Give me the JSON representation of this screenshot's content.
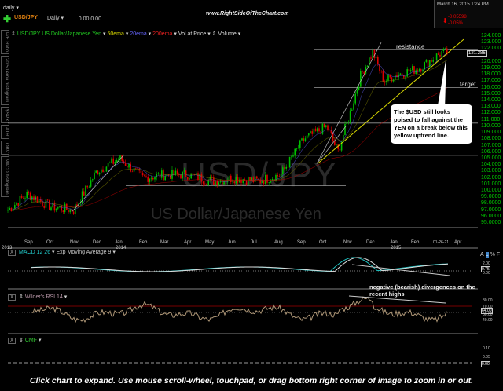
{
  "header": {
    "period": "daily",
    "symbol": "USD/JPY",
    "interval": "Daily",
    "quote": "... 0.00 0.00",
    "site": "www.RightSideOfTheChart.com",
    "datetime": "March 16, 2015 1:24 PM",
    "change": "-0.05598",
    "change_pct": "-0.05%",
    "dots": "... ..."
  },
  "legend": {
    "series": "USD/JPY US Dollar/Japanese Yen",
    "ema50": "50ema",
    "ema20": "20ema",
    "ema200": "200ema",
    "vap": "Vol at Price",
    "volume": "Volume"
  },
  "side_tabs": [
    "P/E Ratio",
    "20/50 ema histogram",
    "$SPX",
    "ATR",
    "OBV",
    "MACD histogram"
  ],
  "watermark": {
    "symbol": "USD/JPY",
    "name": "US Dollar/Japanese Yen"
  },
  "annotations": {
    "resistance": "resistance",
    "target": "target",
    "callout": "The $USD still looks poised to fall against the YEN on a break below this yellow uptrend line.",
    "divergence": "negative (bearish) divergences on the recent highs"
  },
  "panels": {
    "macd": "MACD 12 26",
    "macd_signal": "Exp Moving Average 9",
    "rsi": "Wilder's RSI 14",
    "cmf": "CMF",
    "close_btn": "X"
  },
  "macd_axis": [
    "2.00",
    "0.00"
  ],
  "macd_last": "0.75",
  "rsi_axis": [
    "80.00",
    "70.00",
    "50.00",
    "40.00"
  ],
  "rsi_last": "64.00",
  "cmf_axis": [
    "0.10",
    "0.05",
    "0.00"
  ],
  "axis_controls": [
    "A",
    "L",
    "%",
    "F"
  ],
  "caption": "Click chart to expand. Use mouse scroll-wheel, touchpad, or drag bottom right corner of image to zoom in or out.",
  "colors": {
    "up": "#00c000",
    "down": "#e00000",
    "axis": "#00d000",
    "trend": "#d8d800",
    "macd": "#20c0c0",
    "rsi": "#b09878",
    "ema200": "#c00000"
  },
  "chart_data": {
    "type": "candlestick",
    "y_axis": {
      "min": 95,
      "max": 124,
      "ticks": [
        "124.000",
        "123.000",
        "122.000",
        "120.000",
        "119.000",
        "118.000",
        "117.000",
        "116.000",
        "115.000",
        "114.000",
        "113.000",
        "112.000",
        "111.000",
        "110.000",
        "109.000",
        "108.000",
        "107.000",
        "106.000",
        "105.000",
        "104.000",
        "103.000",
        "102.000",
        "101.000",
        "100.000",
        "99.0000",
        "98.0000",
        "97.0000",
        "96.0000",
        "95.0000"
      ]
    },
    "last_price": "121.286",
    "x_ticks": [
      "Sep",
      "Oct",
      "Nov",
      "Dec",
      "Jan",
      "Feb",
      "Mar",
      "Apr",
      "May",
      "Jun",
      "Jul",
      "Aug",
      "Sep",
      "Oct",
      "Nov",
      "Dec",
      "Jan",
      "Feb",
      "01-26-21",
      "Apr"
    ],
    "year_labels": [
      "2013",
      "2014",
      "2015"
    ],
    "price_path": [
      [
        "2013-08",
        97
      ],
      [
        "2013-09",
        99.5
      ],
      [
        "2013-10",
        97.5
      ],
      [
        "2013-11",
        97
      ],
      [
        "2013-12",
        103
      ],
      [
        "2014-01",
        105
      ],
      [
        "2014-02",
        102
      ],
      [
        "2014-03",
        102.5
      ],
      [
        "2014-04",
        102.5
      ],
      [
        "2014-05",
        101.5
      ],
      [
        "2014-06",
        102
      ],
      [
        "2014-07",
        101.5
      ],
      [
        "2014-08",
        102.5
      ],
      [
        "2014-09",
        108
      ],
      [
        "2014-10",
        110
      ],
      [
        "2014-10",
        106
      ],
      [
        "2014-11",
        112
      ],
      [
        "2014-11",
        118
      ],
      [
        "2014-12",
        121.5
      ],
      [
        "2014-12",
        117
      ],
      [
        "2015-01",
        118
      ],
      [
        "2015-02",
        119
      ],
      [
        "2015-03",
        121.5
      ],
      [
        "2015-03",
        121.3
      ]
    ],
    "horizontal_lines": [
      121.9,
      116,
      110.5,
      105.5,
      100.8
    ]
  }
}
